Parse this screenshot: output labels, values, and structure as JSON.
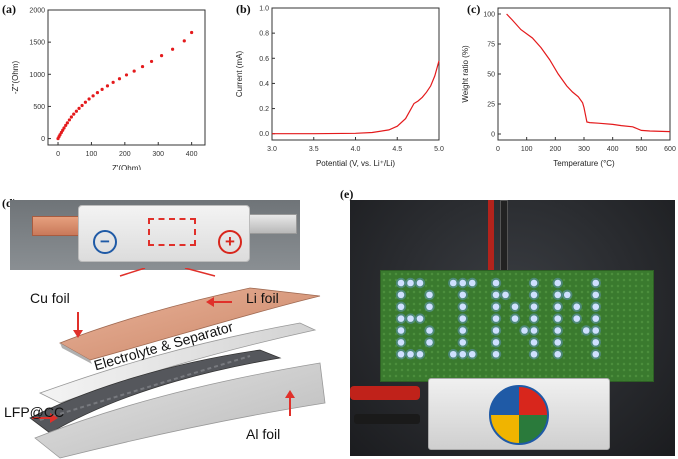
{
  "panels": {
    "a": "(a)",
    "b": "(b)",
    "c": "(c)",
    "d": "(d)",
    "e": "(e)"
  },
  "colors": {
    "curve": "#e41a1c",
    "axis": "#333333",
    "arrow": "#e0302a"
  },
  "chart_data": [
    {
      "id": "a",
      "type": "scatter",
      "xlabel": "Z'(Ohm)",
      "ylabel": "-Z''(Ohm)",
      "xlim": [
        -30,
        440
      ],
      "ylim": [
        -100,
        2000
      ],
      "xticks": [
        0,
        100,
        200,
        300,
        400
      ],
      "yticks": [
        0,
        500,
        1000,
        1500,
        2000
      ],
      "x": [
        0,
        3,
        6,
        10,
        14,
        18,
        23,
        28,
        34,
        40,
        47,
        55,
        63,
        72,
        82,
        93,
        105,
        118,
        132,
        148,
        165,
        184,
        205,
        228,
        253,
        280,
        310,
        343,
        378,
        400
      ],
      "y": [
        0,
        30,
        60,
        95,
        130,
        165,
        205,
        245,
        290,
        335,
        380,
        425,
        470,
        515,
        565,
        615,
        665,
        715,
        765,
        820,
        875,
        930,
        990,
        1050,
        1120,
        1200,
        1290,
        1390,
        1520,
        1650
      ]
    },
    {
      "id": "b",
      "type": "line",
      "xlabel": "Potential (V, vs. Li⁺/Li)",
      "ylabel": "Current (mA)",
      "xlim": [
        3.0,
        5.0
      ],
      "ylim": [
        -0.05,
        1.0
      ],
      "xticks": [
        "3.0",
        "3.5",
        "4.0",
        "4.5",
        "5.0"
      ],
      "yticks": [
        "0.0",
        "0.2",
        "0.4",
        "0.6",
        "0.8",
        "1.0"
      ],
      "x": [
        3.0,
        3.5,
        4.0,
        4.2,
        4.4,
        4.5,
        4.6,
        4.65,
        4.7,
        4.75,
        4.8,
        4.85,
        4.9,
        4.95,
        5.0
      ],
      "y": [
        0.0,
        0.0,
        0.003,
        0.01,
        0.03,
        0.06,
        0.12,
        0.18,
        0.24,
        0.26,
        0.29,
        0.33,
        0.38,
        0.46,
        0.58
      ]
    },
    {
      "id": "c",
      "type": "line",
      "xlabel": "Temperature (°C)",
      "ylabel": "Weight ratio (%)",
      "xlim": [
        0,
        600
      ],
      "ylim": [
        -5,
        105
      ],
      "xticks": [
        "0",
        "100",
        "200",
        "300",
        "400",
        "500",
        "600"
      ],
      "yticks": [
        "0",
        "25",
        "50",
        "75",
        "100"
      ],
      "x": [
        30,
        50,
        80,
        120,
        150,
        180,
        210,
        240,
        260,
        280,
        295,
        300,
        310,
        320,
        350,
        400,
        430,
        470,
        500,
        530,
        600
      ],
      "y": [
        100,
        95,
        87,
        80,
        72,
        62,
        50,
        40,
        35,
        31,
        26,
        22,
        10,
        9.5,
        9,
        8,
        7,
        6,
        3,
        2.5,
        2
      ]
    }
  ],
  "figure_d": {
    "label_cu": "Cu foil",
    "label_li": "Li foil",
    "label_sep": "Electrolyte & Separator",
    "label_lfp": "LFP@CC",
    "label_al": "Al foil",
    "minus": "−",
    "plus": "+"
  },
  "figure_e": {
    "led_text": "BINN"
  }
}
